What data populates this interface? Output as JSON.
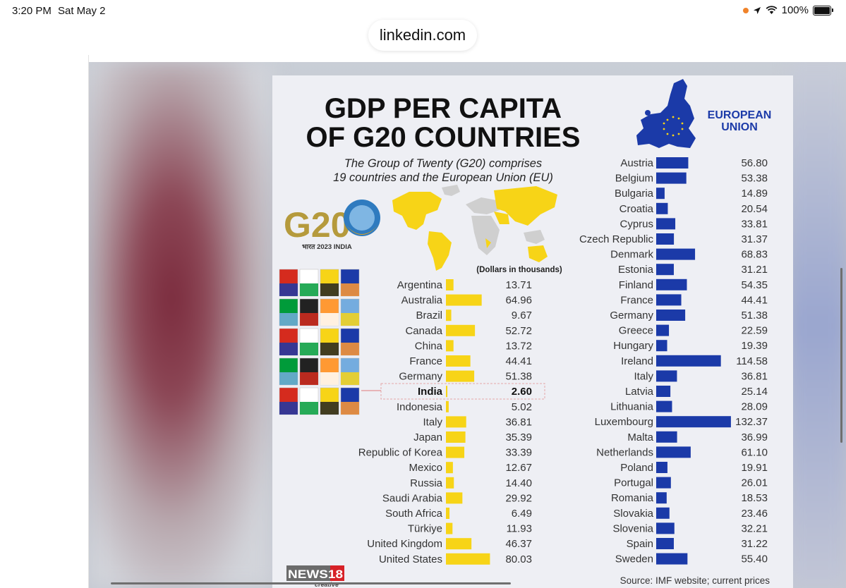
{
  "status_bar": {
    "time": "3:20 PM",
    "date": "Sat May 2",
    "battery": "100%"
  },
  "browser": {
    "url": "linkedin.com"
  },
  "colors": {
    "g20_bar": "#f7d417",
    "eu_bar": "#1b3aa8",
    "title": "#111111",
    "infographic_bg": "#eeeff4"
  },
  "icons": [
    "location-arrow-icon",
    "wifi-icon",
    "battery-icon",
    "g20-logo",
    "world-map",
    "eu-map",
    "flags-cube",
    "news18-logo"
  ],
  "infographic": {
    "title_line1": "GDP PER CAPITA",
    "title_line2": "OF G20 COUNTRIES",
    "subtitle_line1": "The Group of Twenty (G20) comprises",
    "subtitle_line2": "19 countries and the European Union (EU)",
    "eu_label_line1": "EUROPEAN",
    "eu_label_line2": "UNION",
    "g20_logo_text": "G20",
    "g20_logo_sub": "भारत 2023 INDIA",
    "units": "(Dollars in thousands)",
    "source": "Source: IMF website; current prices",
    "brand": "NEWS18",
    "brand_sub": "creative"
  },
  "chart_data": [
    {
      "type": "bar",
      "units": "(Dollars in thousands)",
      "categories": [
        "Argentina",
        "Australia",
        "Brazil",
        "Canada",
        "China",
        "France",
        "Germany",
        "India",
        "Indonesia",
        "Italy",
        "Japan",
        "Republic of Korea",
        "Mexico",
        "Russia",
        "Saudi Arabia",
        "South Africa",
        "Türkiye",
        "United Kingdom",
        "United States"
      ],
      "values": [
        13.71,
        64.96,
        9.67,
        52.72,
        13.72,
        44.41,
        51.38,
        2.6,
        5.02,
        36.81,
        35.39,
        33.39,
        12.67,
        14.4,
        29.92,
        6.49,
        11.93,
        46.37,
        80.03
      ],
      "labels": [
        "13.71",
        "64.96",
        "9.67",
        "52.72",
        "13.72",
        "44.41",
        "51.38",
        "2.60",
        "5.02",
        "36.81",
        "35.39",
        "33.39",
        "12.67",
        "14.40",
        "29.92",
        "6.49",
        "11.93",
        "46.37",
        "80.03"
      ],
      "highlight": "India",
      "orientation": "horizontal"
    },
    {
      "type": "bar",
      "title": "EUROPEAN UNION",
      "categories": [
        "Austria",
        "Belgium",
        "Bulgaria",
        "Croatia",
        "Cyprus",
        "Czech Republic",
        "Denmark",
        "Estonia",
        "Finland",
        "France",
        "Germany",
        "Greece",
        "Hungary",
        "Ireland",
        "Italy",
        "Latvia",
        "Lithuania",
        "Luxembourg",
        "Malta",
        "Netherlands",
        "Poland",
        "Portugal",
        "Romania",
        "Slovakia",
        "Slovenia",
        "Spain",
        "Sweden"
      ],
      "values": [
        56.8,
        53.38,
        14.89,
        20.54,
        33.81,
        31.37,
        68.83,
        31.21,
        54.35,
        44.41,
        51.38,
        22.59,
        19.39,
        114.58,
        36.81,
        25.14,
        28.09,
        132.37,
        36.99,
        61.1,
        19.91,
        26.01,
        18.53,
        23.46,
        32.21,
        31.22,
        55.4
      ],
      "labels": [
        "56.80",
        "53.38",
        "14.89",
        "20.54",
        "33.81",
        "31.37",
        "68.83",
        "31.21",
        "54.35",
        "44.41",
        "51.38",
        "22.59",
        "19.39",
        "114.58",
        "36.81",
        "25.14",
        "28.09",
        "132.37",
        "36.99",
        "61.10",
        "19.91",
        "26.01",
        "18.53",
        "23.46",
        "32.21",
        "31.22",
        "55.40"
      ],
      "orientation": "horizontal"
    }
  ]
}
